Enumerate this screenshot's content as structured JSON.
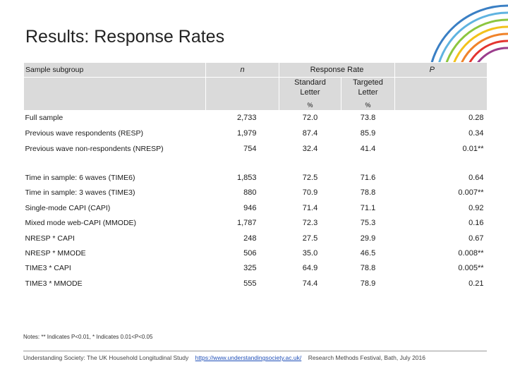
{
  "slide": {
    "title": "Results: Response Rates"
  },
  "table": {
    "headers": {
      "subgroup": "Sample subgroup",
      "n": "n",
      "response_rate": "Response Rate",
      "p": "P",
      "standard_line1": "Standard",
      "standard_line2": "Letter",
      "targeted_line1": "Targeted",
      "targeted_line2": "Letter",
      "pct_standard": "%",
      "pct_targeted": "%"
    },
    "rows": [
      {
        "label": "Full sample",
        "n": "2,733",
        "standard": "72.0",
        "targeted": "73.8",
        "p": "0.28"
      },
      {
        "label": "Previous wave respondents (RESP)",
        "n": "1,979",
        "standard": "87.4",
        "targeted": "85.9",
        "p": "0.34"
      },
      {
        "label": "Previous wave non-respondents (NRESP)",
        "n": "754",
        "standard": "32.4",
        "targeted": "41.4",
        "p": "0.01**"
      },
      {
        "label": "Time in sample: 6 waves (TIME6)",
        "n": "1,853",
        "standard": "72.5",
        "targeted": "71.6",
        "p": "0.64"
      },
      {
        "label": "Time in sample: 3 waves (TIME3)",
        "n": "880",
        "standard": "70.9",
        "targeted": "78.8",
        "p": "0.007**"
      },
      {
        "label": "Single-mode CAPI (CAPI)",
        "n": "946",
        "standard": "71.4",
        "targeted": "71.1",
        "p": "0.92"
      },
      {
        "label": "Mixed mode web-CAPI (MMODE)",
        "n": "1,787",
        "standard": "72.3",
        "targeted": "75.3",
        "p": "0.16"
      },
      {
        "label": "NRESP * CAPI",
        "n": "248",
        "standard": "27.5",
        "targeted": "29.9",
        "p": "0.67"
      },
      {
        "label": "NRESP * MMODE",
        "n": "506",
        "standard": "35.0",
        "targeted": "46.5",
        "p": "0.008**"
      },
      {
        "label": "TIME3 * CAPI",
        "n": "325",
        "standard": "64.9",
        "targeted": "78.8",
        "p": "0.005**"
      },
      {
        "label": "TIME3 * MMODE",
        "n": "555",
        "standard": "74.4",
        "targeted": "78.9",
        "p": "0.21"
      }
    ]
  },
  "notes": "Notes: ** Indicates P<0.01, * Indicates 0.01<P<0.05",
  "footer": {
    "left": "Understanding Society: The UK Household Longitudinal Study",
    "link": "https://www.understandingsociety.ac.uk/",
    "right": "Research Methods Festival, Bath, July 2016"
  },
  "colors": {
    "header_bg": "#dadada",
    "link": "#1f4fb8",
    "arc_colors": [
      "#3a7fc4",
      "#5fb3e0",
      "#8cc63f",
      "#f2c21b",
      "#f0832a",
      "#e3342f",
      "#9b3d8c"
    ]
  }
}
